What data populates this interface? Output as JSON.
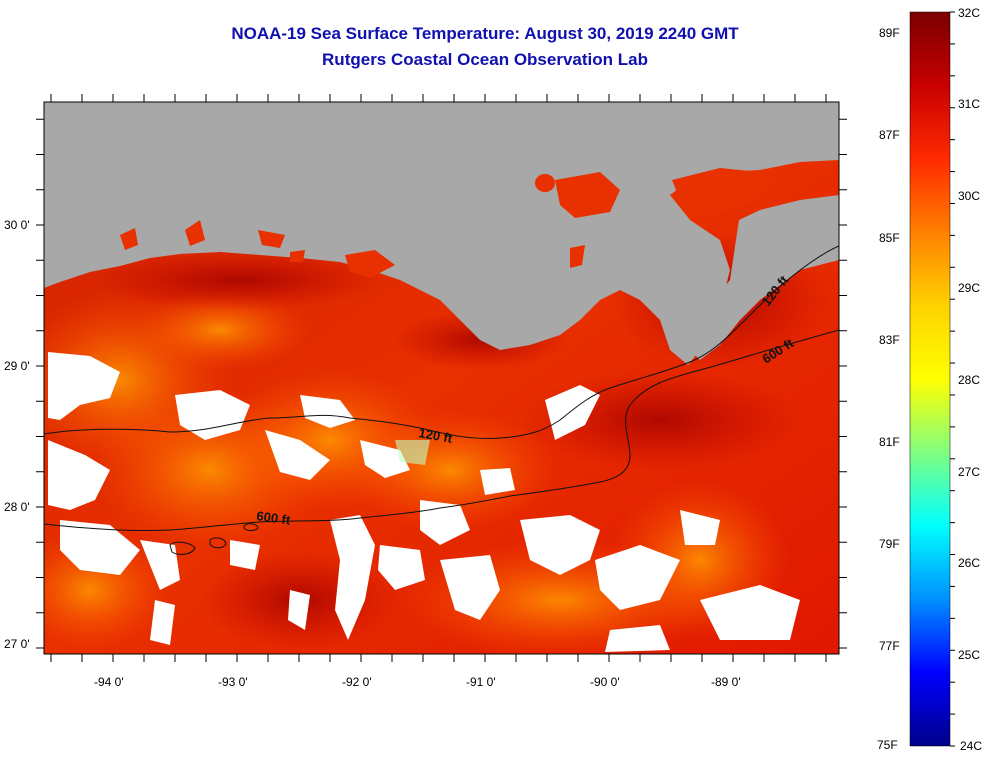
{
  "title": {
    "line1": "NOAA-19 Sea Surface Temperature:  August 30, 2019 2240 GMT",
    "line2": "Rutgers Coastal Ocean Observation Lab"
  },
  "map": {
    "lat_labels": [
      "30 0'",
      "29 0'",
      "28 0'",
      "27 0'"
    ],
    "lon_labels": [
      "-94 0'",
      "-93 0'",
      "-92 0'",
      "-91 0'",
      "-90 0'",
      "-89 0'"
    ],
    "contours": [
      {
        "label": "120 ft"
      },
      {
        "label": "120 ft"
      },
      {
        "label": "600 ft"
      },
      {
        "label": "600 ft"
      }
    ]
  },
  "colorbar": {
    "fahrenheit_labels": [
      "89F",
      "87F",
      "85F",
      "83F",
      "81F",
      "79F",
      "77F",
      "75F"
    ],
    "celsius_labels": [
      "32C",
      "31C",
      "30C",
      "29C",
      "28C",
      "27C",
      "26C",
      "25C",
      "24C"
    ],
    "colors": [
      "#7a0000",
      "#c80000",
      "#ff2a00",
      "#ff8000",
      "#ffd200",
      "#ffff00",
      "#80ff80",
      "#00ffff",
      "#0090ff",
      "#0000ff",
      "#00008a"
    ]
  },
  "colors": {
    "title": "#1010b0",
    "land": "#a8a8a8",
    "cloud": "#ffffff",
    "sea_warm": "#e02800",
    "sea_hot": "#c00000",
    "sea_cool": "#ff8c00"
  }
}
